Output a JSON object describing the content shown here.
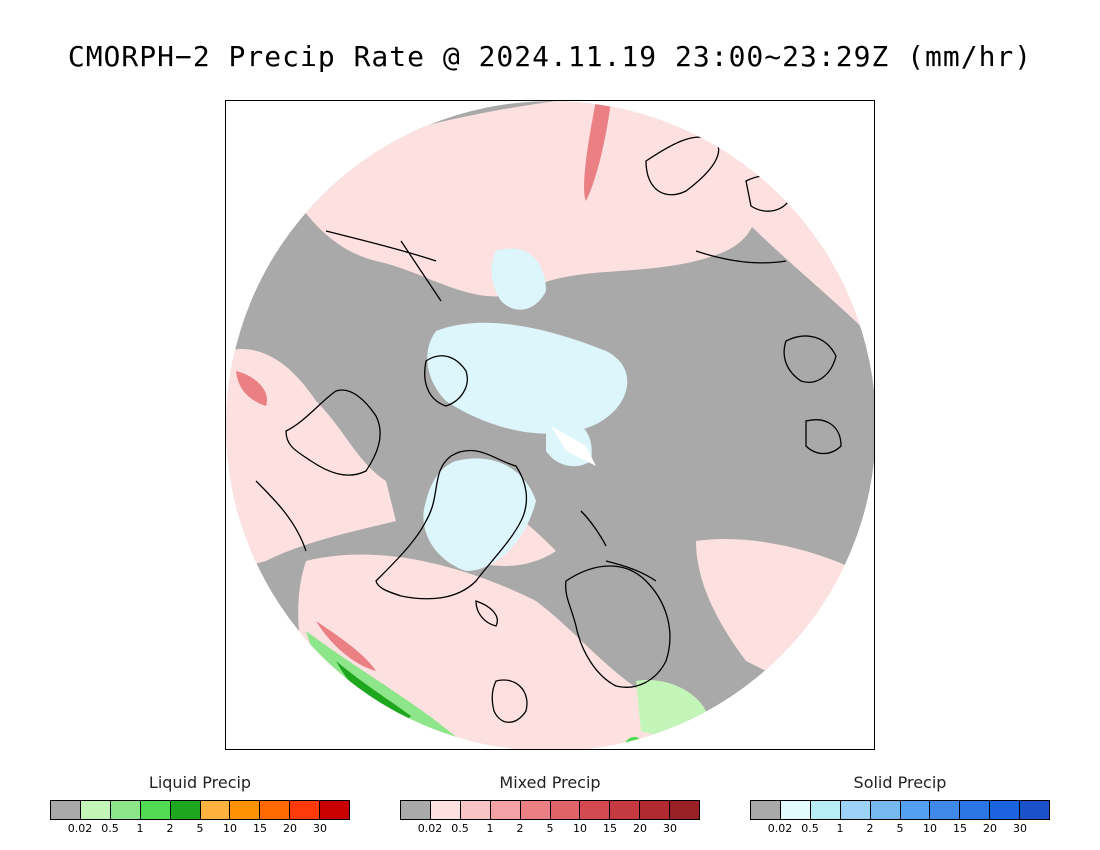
{
  "title": "CMORPH−2 Precip Rate @ 2024.11.19 23:00~23:29Z (mm/hr)",
  "map": {
    "projection": "north-polar-stereographic",
    "colors": {
      "no_precip": "#a9a9a9",
      "ocean_mixed_light": "#fde0e0",
      "snow_light": "#ddf6fb",
      "coastline": "#000000"
    }
  },
  "legends": [
    {
      "title": "Liquid Precip",
      "colors": [
        "#a9a9a9",
        "#c3f5b8",
        "#8ee68a",
        "#52da52",
        "#1fa61f",
        "#ffb23e",
        "#ff9200",
        "#ff6a00",
        "#ff3a0a",
        "#c80000"
      ],
      "ticks": [
        "0.02",
        "0.5",
        "1",
        "2",
        "5",
        "10",
        "15",
        "20",
        "30"
      ]
    },
    {
      "title": "Mixed Precip",
      "colors": [
        "#a9a9a9",
        "#fde0e0",
        "#f9c4c6",
        "#f3a1a4",
        "#ea8084",
        "#df6468",
        "#d34a50",
        "#c43a40",
        "#b02a30",
        "#992025"
      ],
      "ticks": [
        "0.02",
        "0.5",
        "1",
        "2",
        "5",
        "10",
        "15",
        "20",
        "30"
      ]
    },
    {
      "title": "Solid Precip",
      "colors": [
        "#a9a9a9",
        "#e2fcfd",
        "#b7eef6",
        "#9cd2f5",
        "#78b8f0",
        "#539ff0",
        "#3f8ae8",
        "#2a76e6",
        "#1c63e0",
        "#1a52cc"
      ],
      "ticks": [
        "0.02",
        "0.5",
        "1",
        "2",
        "5",
        "10",
        "15",
        "20",
        "30"
      ]
    }
  ]
}
